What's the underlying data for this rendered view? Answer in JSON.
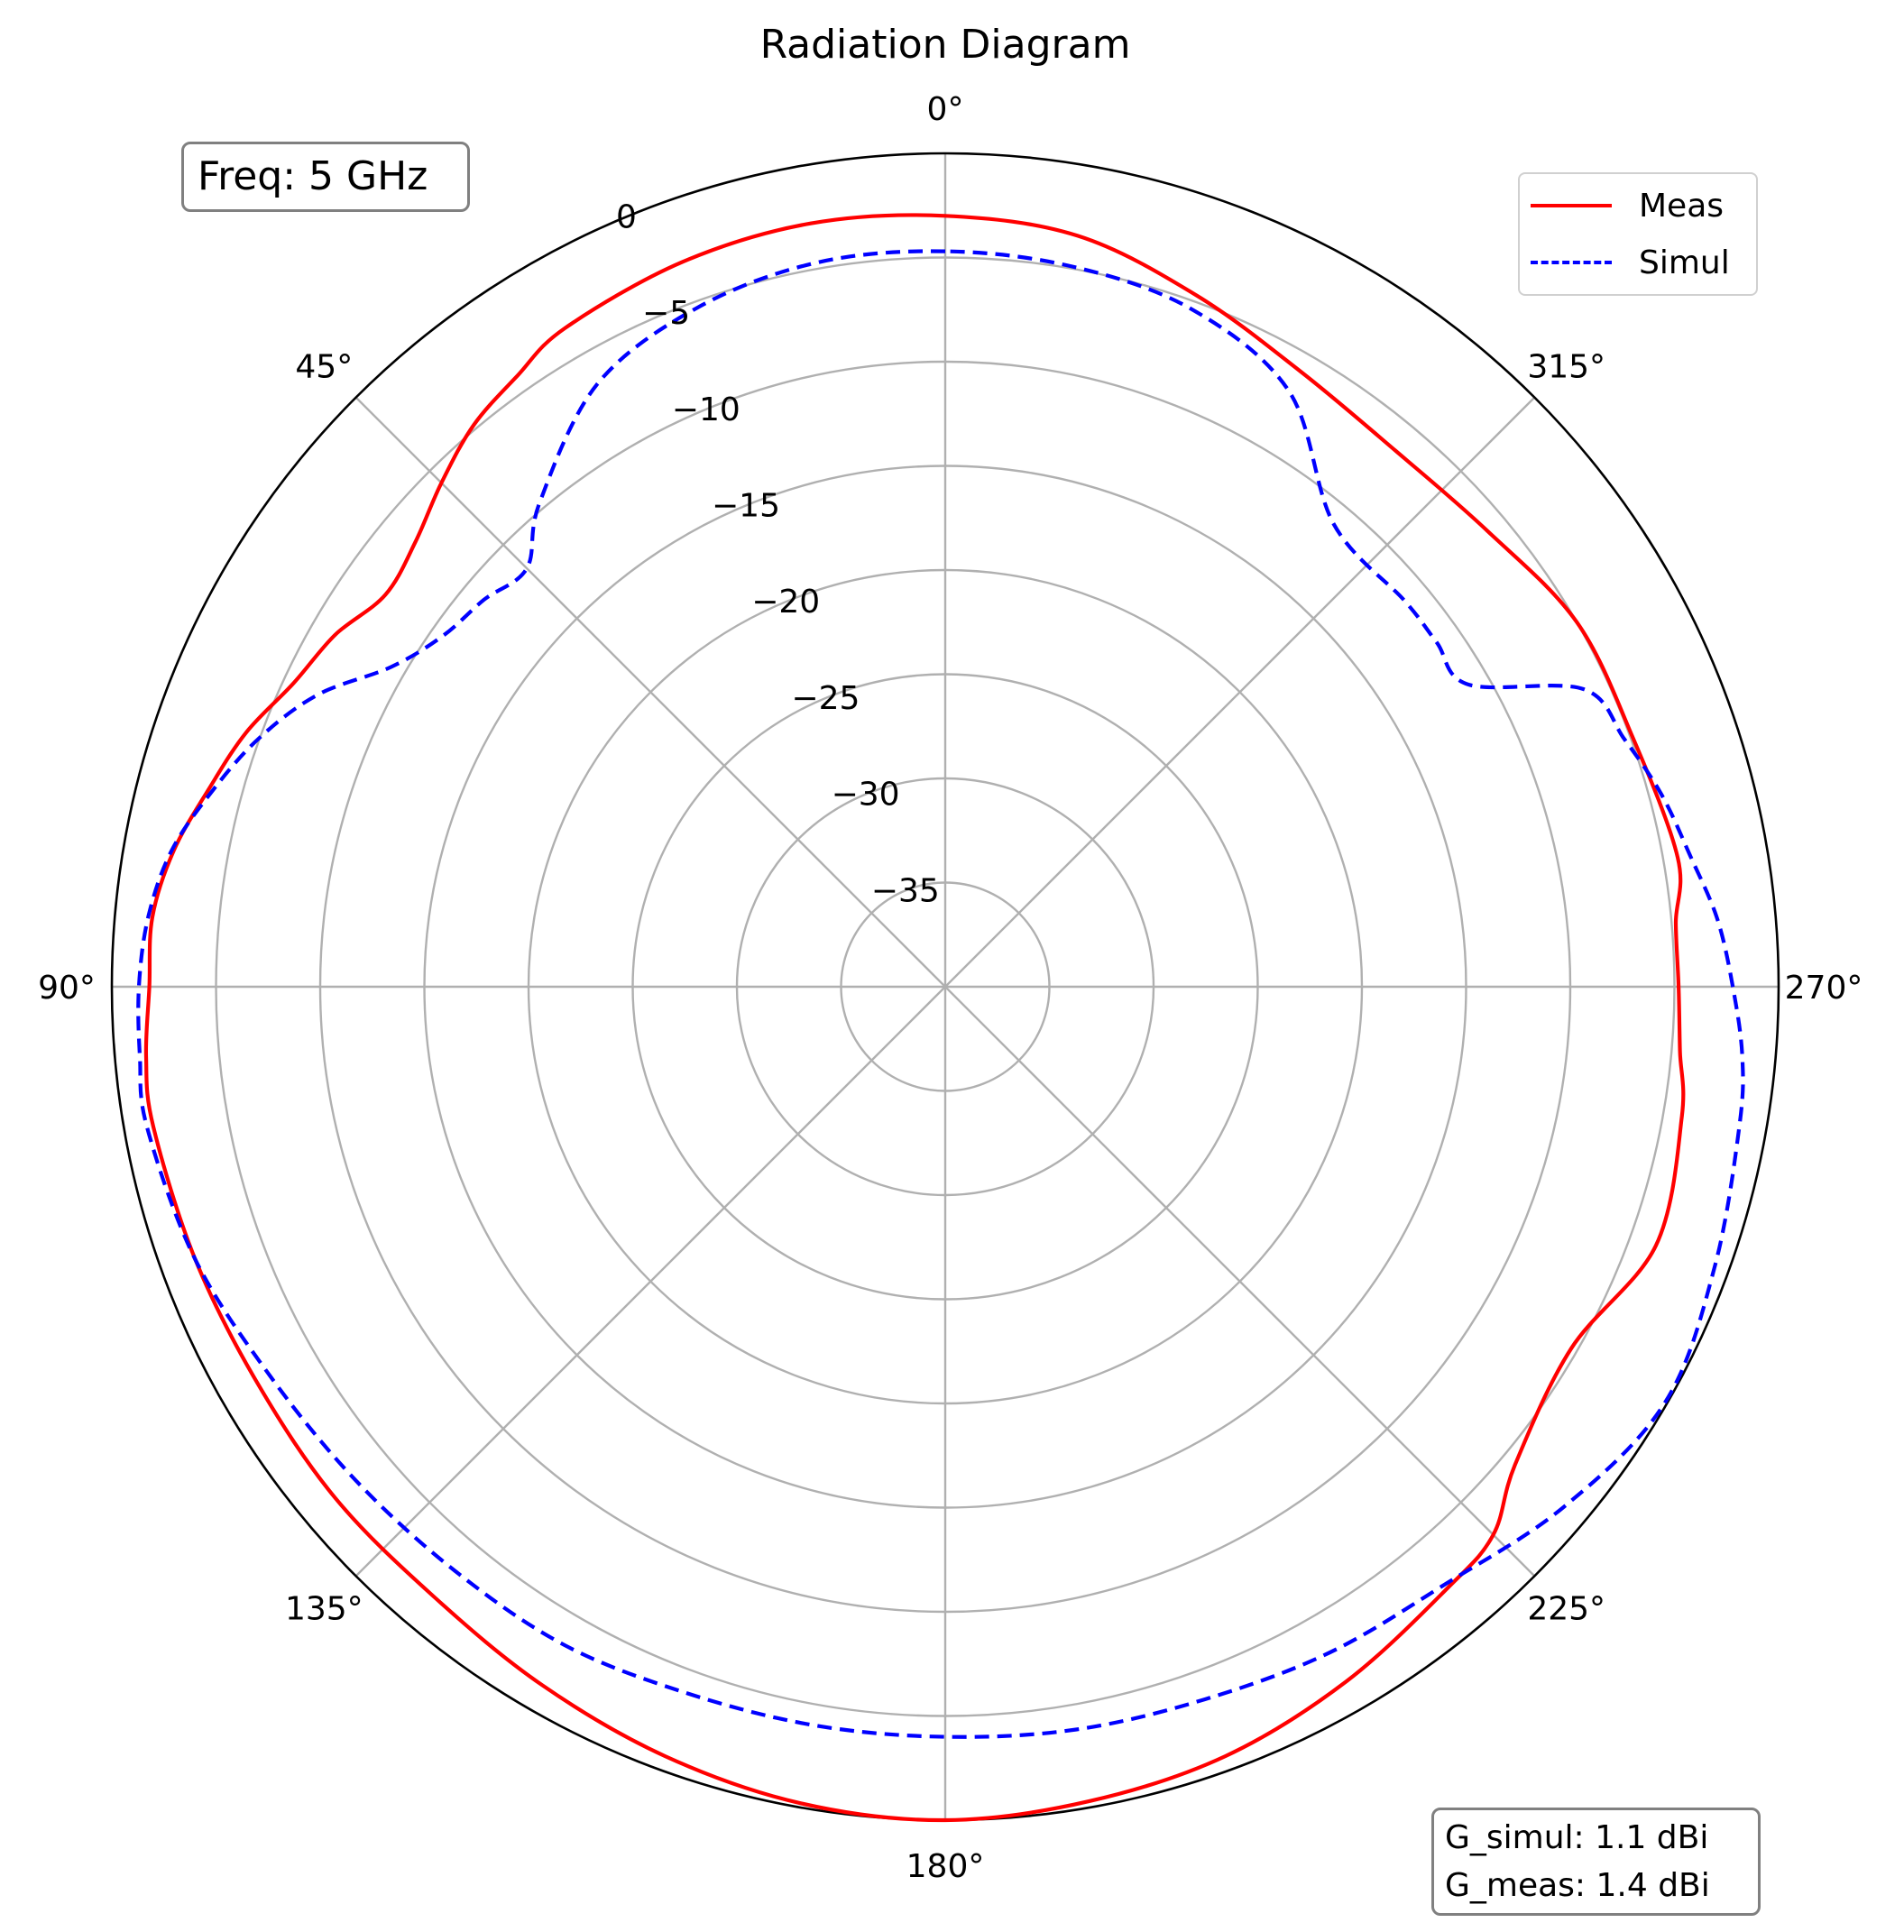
{
  "chart_data": {
    "type": "polar-line",
    "title": "Radiation Diagram",
    "theta_ticks": [
      "0°",
      "45°",
      "90°",
      "135°",
      "180°",
      "225°",
      "270°",
      "315°"
    ],
    "theta_direction": "counterclockwise",
    "theta_zero": "top",
    "r_ticks": [
      "0",
      "−5",
      "−10",
      "−15",
      "−20",
      "−25",
      "−30",
      "−35"
    ],
    "r_tick_values": [
      0,
      -5,
      -10,
      -15,
      -20,
      -25,
      -30,
      -35
    ],
    "r_range": [
      -40,
      0
    ],
    "grid": true,
    "legend_position": "top-right",
    "series": [
      {
        "name": "Meas",
        "color": "#ff0000",
        "style": "solid",
        "theta_deg": [
          0,
          10,
          20,
          30,
          35,
          40,
          45,
          50,
          55,
          60,
          65,
          70,
          75,
          80,
          85,
          90,
          95,
          100,
          110,
          120,
          130,
          140,
          150,
          160,
          170,
          180,
          190,
          200,
          210,
          220,
          225,
          230,
          240,
          250,
          260,
          265,
          270,
          275,
          280,
          290,
          300,
          310,
          320,
          330,
          340,
          350
        ],
        "values_db": [
          -3,
          -2.8,
          -3,
          -3.5,
          -4.2,
          -4.8,
          -5.8,
          -6.8,
          -7.2,
          -6.2,
          -5.5,
          -4.3,
          -3.4,
          -2.4,
          -1.8,
          -1.8,
          -1.5,
          -1.4,
          -1.7,
          -1.9,
          -1.8,
          -1.8,
          -1.3,
          -0.7,
          -0.2,
          0,
          -0.3,
          -0.7,
          -1.5,
          -2.4,
          -2.8,
          -4.3,
          -5.3,
          -3.7,
          -4.1,
          -4.6,
          -4.8,
          -4.8,
          -4.3,
          -4.9,
          -5,
          -6,
          -6.4,
          -5.9,
          -4.7,
          -3.4
        ]
      },
      {
        "name": "Simul",
        "color": "#0000ff",
        "style": "dashed",
        "theta_deg": [
          0,
          10,
          20,
          30,
          40,
          45,
          50,
          55,
          60,
          65,
          70,
          75,
          80,
          85,
          90,
          95,
          100,
          110,
          120,
          130,
          140,
          150,
          160,
          170,
          180,
          190,
          200,
          210,
          220,
          230,
          240,
          250,
          260,
          265,
          270,
          275,
          280,
          285,
          290,
          295,
          300,
          305,
          310,
          320,
          330,
          340,
          350
        ],
        "values_db": [
          -4.7,
          -4.7,
          -5.3,
          -6.6,
          -9.7,
          -11.6,
          -11.1,
          -10.6,
          -9.3,
          -6.8,
          -5,
          -3.6,
          -2.3,
          -1.6,
          -1.3,
          -1.2,
          -1.1,
          -1.7,
          -2.6,
          -3.1,
          -3.4,
          -3.5,
          -3.9,
          -4,
          -4,
          -3.8,
          -3.6,
          -3.1,
          -2.6,
          -1.2,
          -0.1,
          -0.7,
          -1.3,
          -1.6,
          -2.2,
          -2.8,
          -3.7,
          -4.4,
          -5.3,
          -6.2,
          -11,
          -11.2,
          -11.2,
          -11,
          -7,
          -5.4,
          -4.9
        ]
      }
    ],
    "annotations": [
      "Freq: 5 GHz",
      "G_simul: 1.1 dBi",
      "G_meas: 1.4 dBi"
    ]
  },
  "freq_label": "Freq: 5 GHz",
  "gain_simul": "G_simul: 1.1 dBi",
  "gain_meas": "G_meas: 1.4 dBi"
}
